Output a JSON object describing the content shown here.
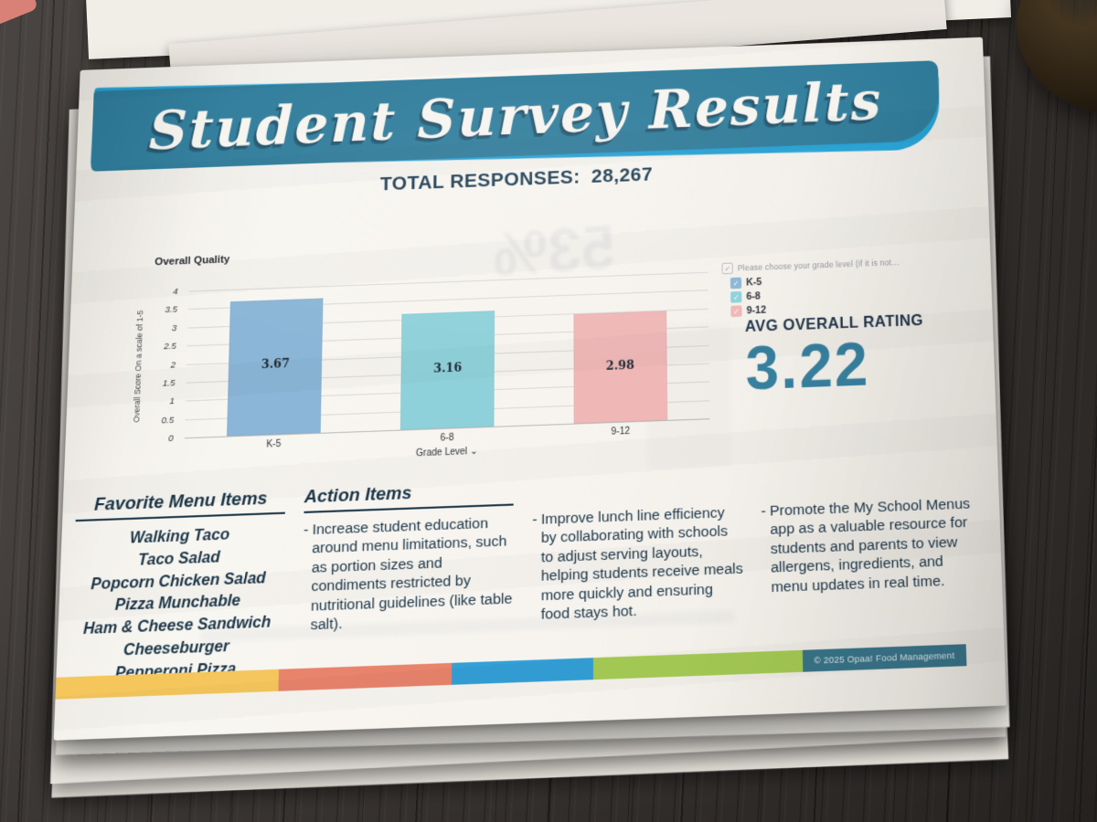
{
  "document": {
    "title": "Student Survey Results",
    "total_responses_label": "TOTAL RESPONSES:",
    "total_responses_value": "28,267",
    "ghost_bleed_text": "53%",
    "footer_copyright": "© 2025 Opaa! Food Management"
  },
  "chart_data": {
    "type": "bar",
    "title": "Overall Quality",
    "categories": [
      "K-5",
      "6-8",
      "9-12"
    ],
    "values": [
      3.67,
      3.16,
      2.98
    ],
    "value_labels": [
      "3.67",
      "3.16",
      "2.98"
    ],
    "bar_colors": [
      "#8bb6d7",
      "#8fd1da",
      "#efb8b7"
    ],
    "xlabel": "Grade Level",
    "ylabel": "Overall Score On a scale of 1-5",
    "ylim": [
      0,
      4
    ],
    "yticks": [
      "4",
      "3.5",
      "3",
      "2.5",
      "2",
      "1.5",
      "1",
      "0.5",
      "0"
    ],
    "grid": true,
    "legend": {
      "position": "right",
      "header": "Please choose your grade level (if it is not…",
      "items": [
        {
          "label": "K-5",
          "color": "#8bb6d7"
        },
        {
          "label": "6-8",
          "color": "#8fd1da"
        },
        {
          "label": "9-12",
          "color": "#efb8b7"
        }
      ]
    }
  },
  "rating": {
    "label": "AVG OVERALL RATING",
    "value": "3.22",
    "color": "#37809f"
  },
  "menu": {
    "heading": "Favorite Menu Items",
    "items": [
      "Walking Taco",
      "Taco Salad",
      "Popcorn Chicken Salad",
      "Pizza Munchable",
      "Ham & Cheese Sandwich",
      "Cheeseburger",
      "Pepperoni Pizza"
    ]
  },
  "actions": {
    "heading": "Action Items",
    "bullet": "-",
    "items": [
      {
        "text": "Increase student education around menu limitations, such as portion sizes and condiments restricted by nutritional guidelines (like table salt)."
      },
      {
        "text": "Improve lunch line efficiency by collaborating with schools to adjust serving layouts, helping students receive meals more quickly and ensuring food stays hot."
      },
      {
        "text": "Promote the My School Menus app as a valuable resource for students and parents to view allergens, ingredients, and menu updates in real time."
      }
    ]
  },
  "footer": {
    "segments": [
      {
        "color": "#f4c65c",
        "width": 24.5
      },
      {
        "color": "#e8836c",
        "width": 19
      },
      {
        "color": "#34a0d7",
        "width": 15.5
      },
      {
        "color": "#a6cb54",
        "width": 23
      },
      {
        "color": "#3a758a",
        "width": 18
      }
    ]
  },
  "theme": {
    "banner_color": "#2e7c9b",
    "banner_accent": "#24a2d5",
    "text_color": "#1b3648"
  }
}
